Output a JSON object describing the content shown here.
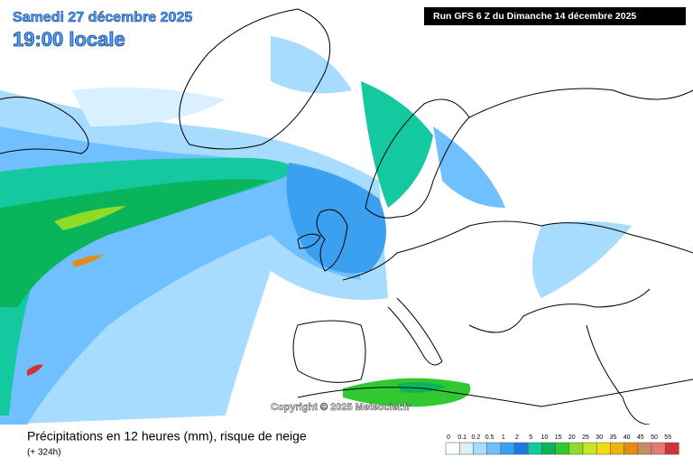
{
  "header": {
    "date": "Samedi 27 décembre 2025",
    "time": "19:00 locale",
    "run": "Run GFS 6 Z du Dimanche 14 décembre 2025"
  },
  "copyright": "Copyright © 2025 Meteociel.fr",
  "footer": {
    "title": "Précipitations en 12 heures (mm), risque de neige",
    "lead": "(+ 324h)"
  },
  "legend": [
    {
      "label": 0,
      "color": "#ffffff"
    },
    {
      "label": 0.1,
      "color": "#d8f0ff"
    },
    {
      "label": 0.2,
      "color": "#a8dcff"
    },
    {
      "label": 0.5,
      "color": "#70c0ff"
    },
    {
      "label": 1,
      "color": "#3ca0f0"
    },
    {
      "label": 2,
      "color": "#1e78e6"
    },
    {
      "label": 5,
      "color": "#14c8a0"
    },
    {
      "label": 10,
      "color": "#0ab45a"
    },
    {
      "label": 15,
      "color": "#32c832"
    },
    {
      "label": 20,
      "color": "#8cdc28"
    },
    {
      "label": 25,
      "color": "#c8e628"
    },
    {
      "label": 30,
      "color": "#f0dc14"
    },
    {
      "label": 35,
      "color": "#f0b40a"
    },
    {
      "label": 40,
      "color": "#e68c14"
    },
    {
      "label": 45,
      "color": "#c88c64"
    },
    {
      "label": 50,
      "color": "#e67878"
    },
    {
      "label": 55,
      "color": "#d23232"
    }
  ]
}
